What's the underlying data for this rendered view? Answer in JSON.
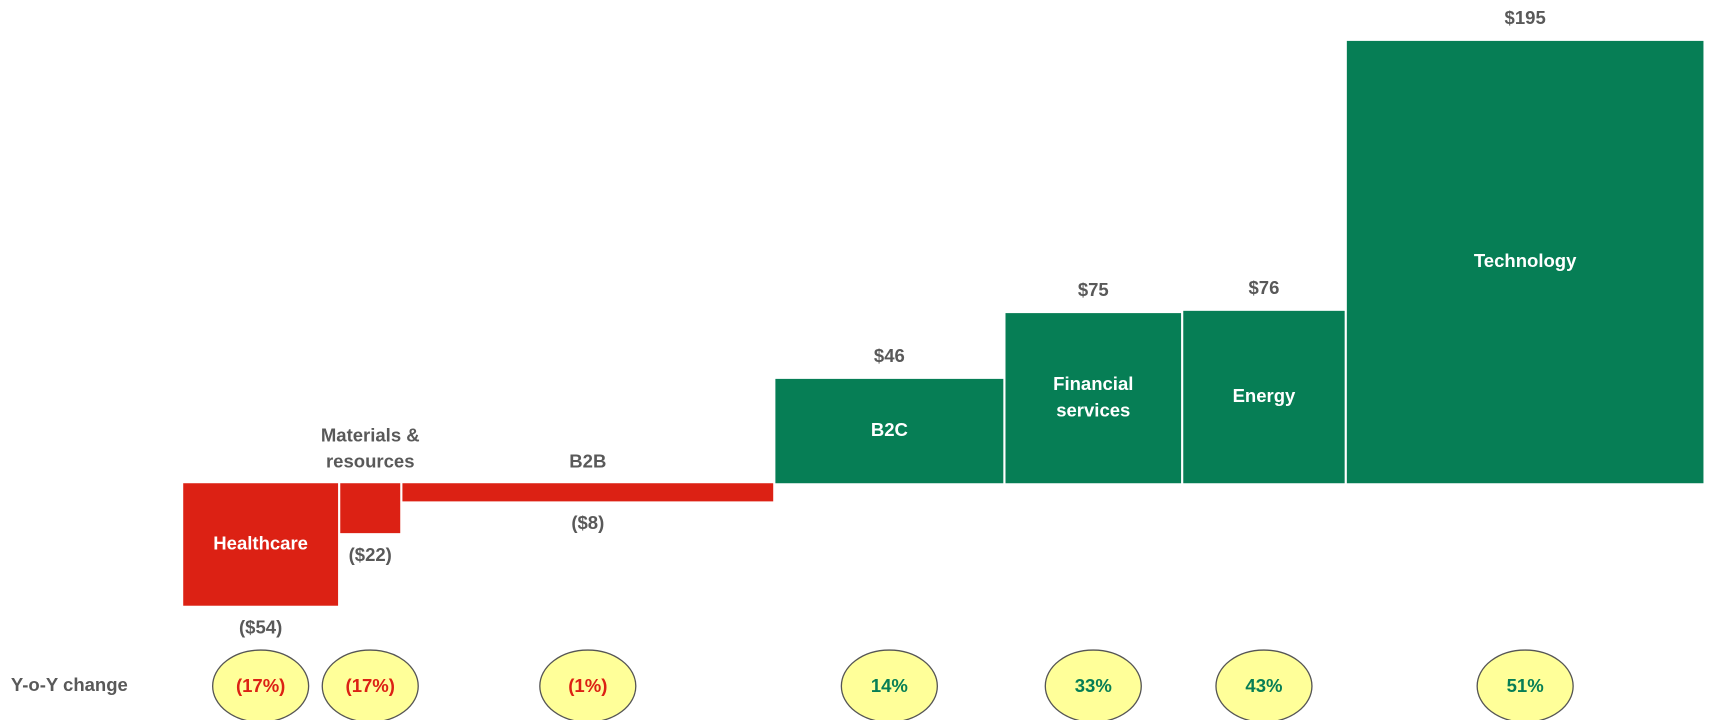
{
  "chart_data": {
    "type": "variable-width-bar",
    "categories": [
      "Healthcare",
      "Materials & resources",
      "B2B",
      "B2C",
      "Financial services",
      "Energy",
      "Technology"
    ],
    "values": [
      -54,
      -22,
      -8,
      46,
      75,
      76,
      195
    ],
    "value_labels": [
      "($54)",
      "($22)",
      "($8)",
      "$46",
      "$75",
      "$76",
      "$195"
    ],
    "widths": [
      142,
      55,
      340,
      209,
      161,
      148,
      327
    ],
    "change_label": "Y-o-Y change",
    "changes": [
      -17,
      -17,
      -1,
      14,
      33,
      43,
      51
    ],
    "change_labels": [
      "(17%)",
      "(17%)",
      "(1%)",
      "14%",
      "33%",
      "43%",
      "51%"
    ],
    "negative_color": "#dc2114",
    "positive_color": "#067e55"
  }
}
